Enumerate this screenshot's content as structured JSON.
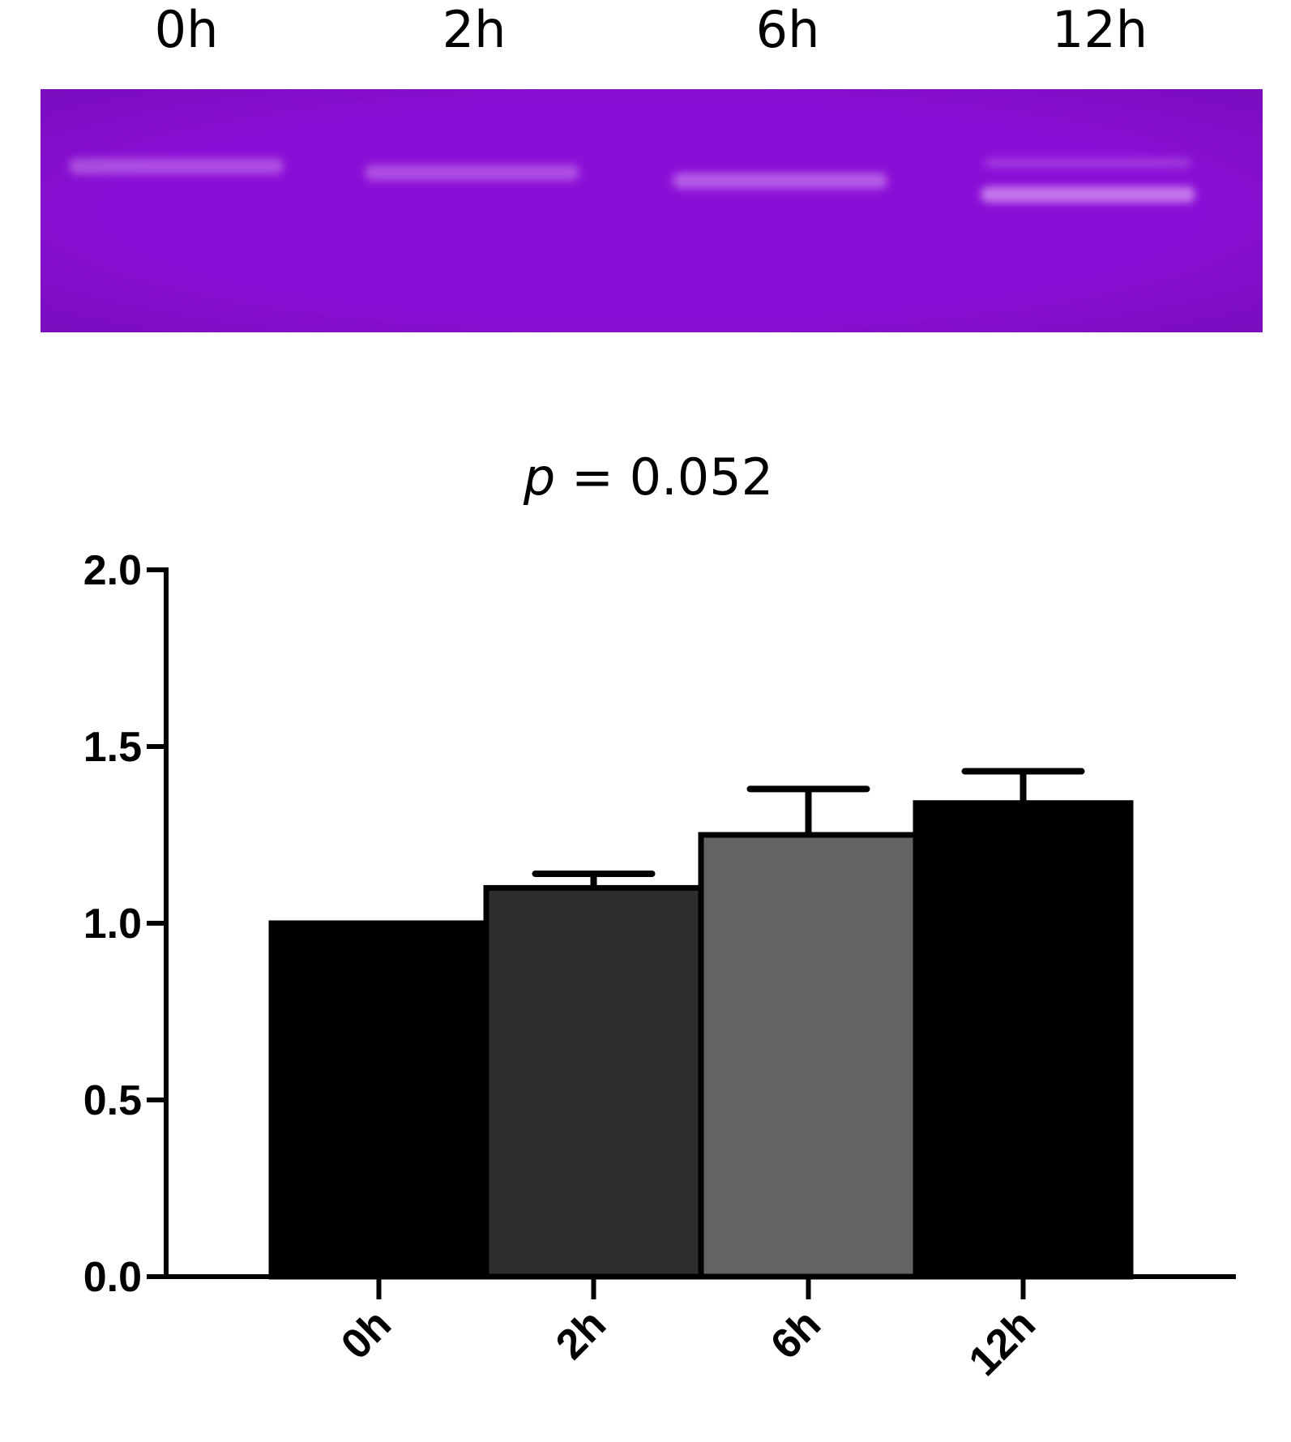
{
  "gel": {
    "lane_labels": [
      "0h",
      "2h",
      "6h",
      "12h"
    ],
    "background_color": "#8a0fd6",
    "band_color": "#d99bf5"
  },
  "chart_data": {
    "type": "bar",
    "title": "p = 0.052",
    "title_italic_part": "p",
    "title_rest": " = 0.052",
    "categories": [
      "0h",
      "2h",
      "6h",
      "12h"
    ],
    "values": [
      1.0,
      1.1,
      1.25,
      1.34
    ],
    "error_upper": [
      0.0,
      0.04,
      0.13,
      0.09
    ],
    "bar_colors": [
      "#000000",
      "#2e2e2e",
      "#636363",
      "#000000"
    ],
    "ylim": [
      0,
      2.0
    ],
    "yticks": [
      "0.0",
      "0.5",
      "1.0",
      "1.5",
      "2.0"
    ],
    "ytick_values": [
      0,
      0.5,
      1.0,
      1.5,
      2.0
    ],
    "xlabel": "",
    "ylabel": "",
    "grid": false
  }
}
